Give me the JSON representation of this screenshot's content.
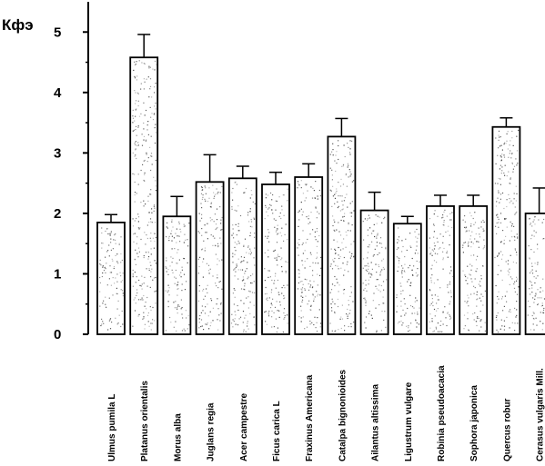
{
  "chart_data": {
    "type": "bar",
    "ylabel": "Кфэ",
    "xlabel": "",
    "ylim": [
      0,
      5.5
    ],
    "yticks": [
      "0",
      "1",
      "2",
      "3",
      "4",
      "5"
    ],
    "categories": [
      "Ulmus pumila L",
      "Platanus orientalis",
      "Morus alba",
      "Juglans regia",
      "Acer campestre",
      "Ficus carica L",
      "Fraxinus Americana",
      "Catalpa bignonioides",
      "Ailantus altissima",
      "Ligustrum vulgare",
      "Robinia pseudoacacia",
      "Sophora japonica",
      "Quercus robur",
      "Cerasus vulgaris Mill."
    ],
    "values": [
      1.85,
      4.58,
      1.95,
      2.52,
      2.58,
      2.48,
      2.6,
      3.27,
      2.05,
      1.83,
      2.12,
      2.12,
      3.43,
      2.0
    ],
    "errors": [
      0.13,
      0.38,
      0.33,
      0.45,
      0.2,
      0.2,
      0.22,
      0.3,
      0.3,
      0.12,
      0.18,
      0.18,
      0.15,
      0.42
    ],
    "bar_fill": "#ffffff",
    "bar_stroke": "#000000",
    "speckle_color": "#333333",
    "grid": false,
    "legend": "none"
  }
}
